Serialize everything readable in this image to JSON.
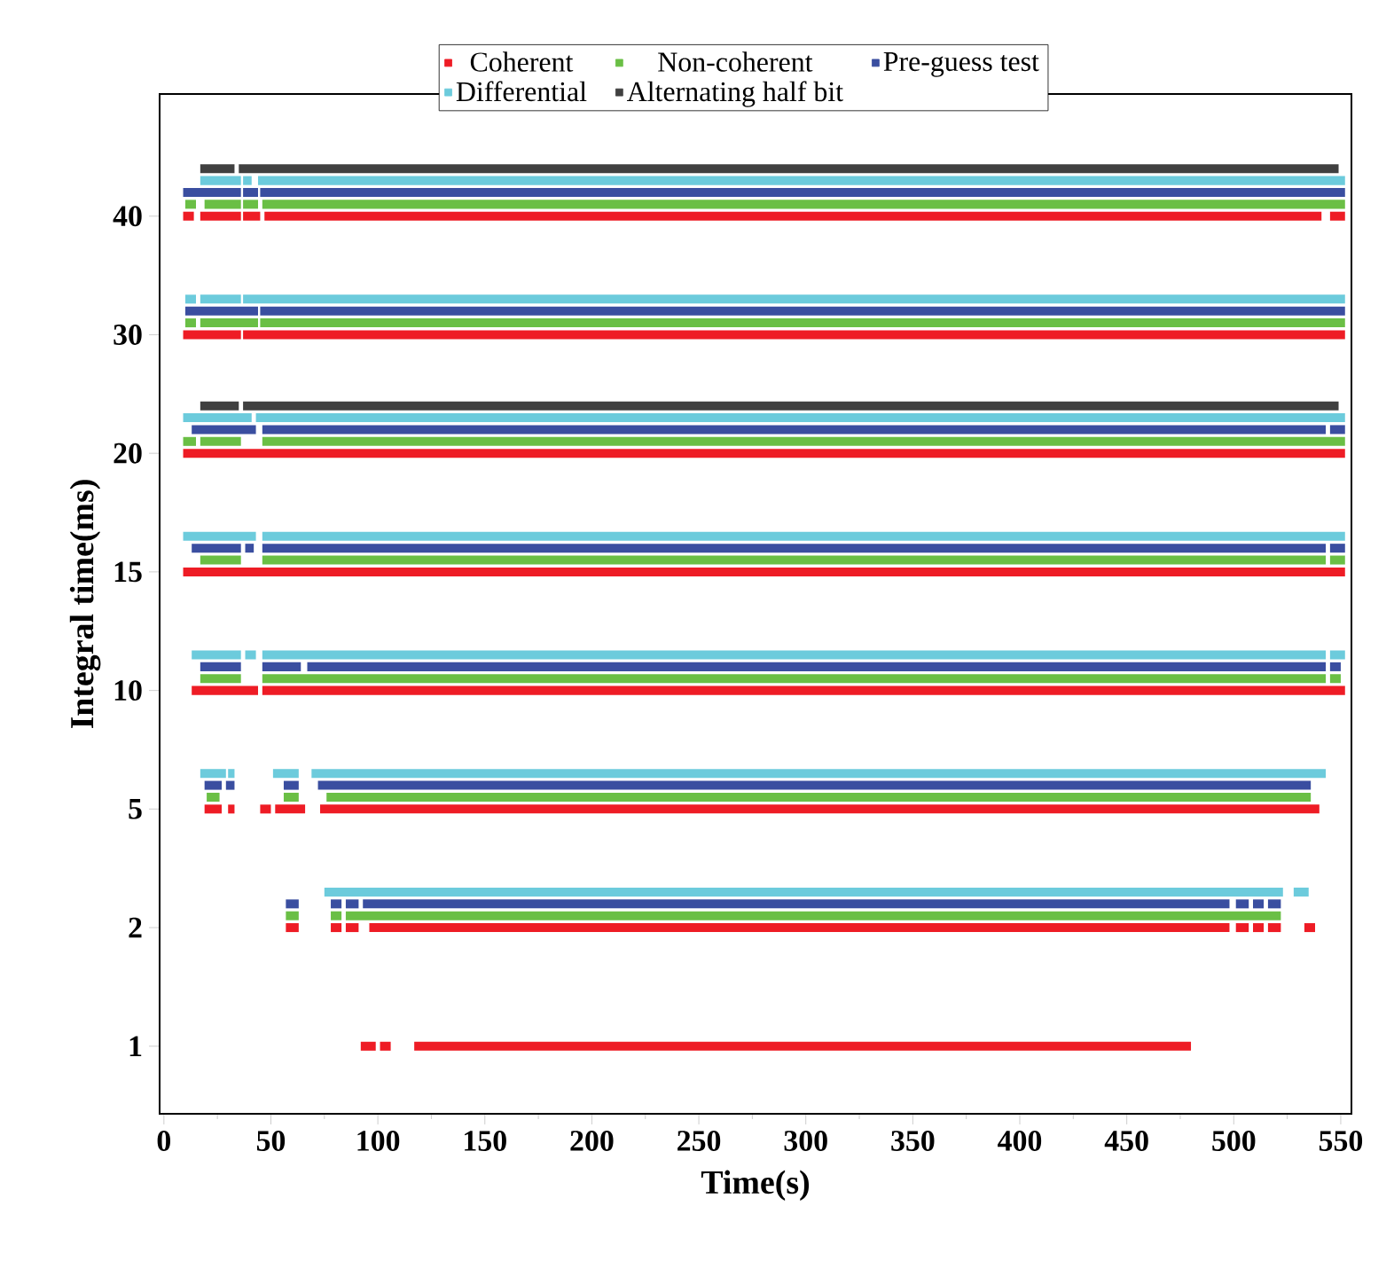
{
  "chart_data": {
    "type": "bar",
    "orientation": "horizontal",
    "xlabel": "Time(s)",
    "ylabel": "Integral time(ms)",
    "categories": [
      "40",
      "30",
      "20",
      "15",
      "10",
      "5",
      "2",
      "1"
    ],
    "xlim": [
      -2,
      555
    ],
    "xticks": [
      0,
      50,
      100,
      150,
      200,
      250,
      300,
      350,
      400,
      450,
      500,
      550
    ],
    "legend": "top",
    "grid": false,
    "series": [
      {
        "name": "Coherent",
        "color": "#ee1c25",
        "base": [
          9,
          9,
          9,
          9,
          13,
          19,
          57,
          92
        ],
        "values": [
          5,
          27,
          543,
          543,
          31,
          8,
          6,
          7
        ]
      },
      {
        "color": "#ee1c25",
        "base": [
          17,
          37,
          null,
          null,
          46,
          30,
          78,
          101
        ],
        "values": [
          19,
          515,
          null,
          null,
          506,
          3,
          5,
          5
        ]
      },
      {
        "color": "#ee1c25",
        "base": [
          37,
          null,
          null,
          null,
          null,
          45,
          85,
          117
        ],
        "values": [
          8,
          null,
          null,
          null,
          null,
          5,
          6,
          363
        ]
      },
      {
        "color": "#ee1c25",
        "base": [
          47,
          null,
          null,
          null,
          null,
          52,
          96,
          null
        ],
        "values": [
          494,
          null,
          null,
          null,
          null,
          14,
          402,
          null
        ]
      },
      {
        "color": "#ee1c25",
        "base": [
          545,
          null,
          null,
          null,
          null,
          73,
          501,
          null
        ],
        "values": [
          7,
          null,
          null,
          null,
          null,
          467,
          6,
          null
        ]
      },
      {
        "color": "#ee1c25",
        "base": [
          null,
          null,
          null,
          null,
          null,
          null,
          509,
          null
        ],
        "values": [
          null,
          null,
          null,
          null,
          null,
          null,
          5,
          null
        ]
      },
      {
        "color": "#ee1c25",
        "base": [
          null,
          null,
          null,
          null,
          null,
          null,
          516,
          null
        ],
        "values": [
          null,
          null,
          null,
          null,
          null,
          null,
          6,
          null
        ]
      },
      {
        "color": "#ee1c25",
        "base": [
          null,
          null,
          null,
          null,
          null,
          null,
          533,
          null
        ],
        "values": [
          null,
          null,
          null,
          null,
          null,
          null,
          5,
          null
        ]
      },
      {
        "name": "Non-coherent",
        "color": "#6abf45",
        "base": [
          10,
          10,
          9,
          17,
          17,
          20,
          57,
          null
        ],
        "values": [
          5,
          5,
          6,
          19,
          19,
          6,
          6,
          null
        ]
      },
      {
        "color": "#6abf45",
        "base": [
          19,
          17,
          17,
          46,
          46,
          56,
          78,
          null
        ],
        "values": [
          17,
          27,
          19,
          497,
          497,
          7,
          5,
          null
        ]
      },
      {
        "color": "#6abf45",
        "base": [
          37,
          45,
          46,
          545,
          545,
          76,
          85,
          null
        ],
        "values": [
          7,
          507,
          506,
          7,
          5,
          460,
          437,
          null
        ]
      },
      {
        "color": "#6abf45",
        "base": [
          46,
          null,
          null,
          null,
          null,
          null,
          null,
          null
        ],
        "values": [
          506,
          null,
          null,
          null,
          null,
          null,
          null,
          null
        ]
      },
      {
        "name": "Pre-guess test",
        "color": "#3a4ea0",
        "base": [
          9,
          10,
          13,
          13,
          17,
          19,
          57,
          null
        ],
        "values": [
          27,
          34,
          30,
          23,
          19,
          8,
          6,
          null
        ]
      },
      {
        "color": "#3a4ea0",
        "base": [
          37,
          45,
          46,
          38,
          46,
          29,
          78,
          null
        ],
        "values": [
          7,
          507,
          497,
          4,
          18,
          4,
          5,
          null
        ]
      },
      {
        "color": "#3a4ea0",
        "base": [
          45,
          null,
          545,
          46,
          67,
          56,
          85,
          null
        ],
        "values": [
          507,
          null,
          7,
          497,
          476,
          7,
          6,
          null
        ]
      },
      {
        "color": "#3a4ea0",
        "base": [
          null,
          null,
          null,
          545,
          545,
          72,
          93,
          null
        ],
        "values": [
          null,
          null,
          null,
          7,
          5,
          464,
          405,
          null
        ]
      },
      {
        "color": "#3a4ea0",
        "base": [
          null,
          null,
          null,
          null,
          null,
          null,
          501,
          null
        ],
        "values": [
          null,
          null,
          null,
          null,
          null,
          null,
          6,
          null
        ]
      },
      {
        "color": "#3a4ea0",
        "base": [
          null,
          null,
          null,
          null,
          null,
          null,
          509,
          null
        ],
        "values": [
          null,
          null,
          null,
          null,
          null,
          null,
          5,
          null
        ]
      },
      {
        "color": "#3a4ea0",
        "base": [
          null,
          null,
          null,
          null,
          null,
          null,
          516,
          null
        ],
        "values": [
          null,
          null,
          null,
          null,
          null,
          null,
          6,
          null
        ]
      },
      {
        "name": "Differential",
        "color": "#6ccbdc",
        "base": [
          17,
          10,
          9,
          9,
          13,
          17,
          75,
          null
        ],
        "values": [
          19,
          5,
          32,
          34,
          23,
          12,
          448,
          null
        ]
      },
      {
        "color": "#6ccbdc",
        "base": [
          37,
          17,
          43,
          46,
          38,
          30,
          528,
          null
        ],
        "values": [
          4,
          19,
          509,
          506,
          5,
          3,
          7,
          null
        ]
      },
      {
        "color": "#6ccbdc",
        "base": [
          44,
          37,
          null,
          null,
          46,
          51,
          null,
          null
        ],
        "values": [
          508,
          515,
          null,
          null,
          497,
          12,
          null,
          null
        ]
      },
      {
        "color": "#6ccbdc",
        "base": [
          null,
          null,
          null,
          null,
          545,
          69,
          null,
          null
        ],
        "values": [
          null,
          null,
          null,
          null,
          7,
          474,
          null,
          null
        ]
      },
      {
        "name": "Alternating half bit",
        "color": "#404040",
        "base": [
          17,
          null,
          17,
          null,
          null,
          null,
          null,
          null
        ],
        "values": [
          16,
          null,
          18,
          null,
          null,
          null,
          null,
          null
        ]
      },
      {
        "color": "#404040",
        "base": [
          35,
          null,
          37,
          null,
          null,
          null,
          null,
          null
        ],
        "values": [
          514,
          null,
          512,
          null,
          null,
          null,
          null,
          null
        ]
      }
    ]
  }
}
